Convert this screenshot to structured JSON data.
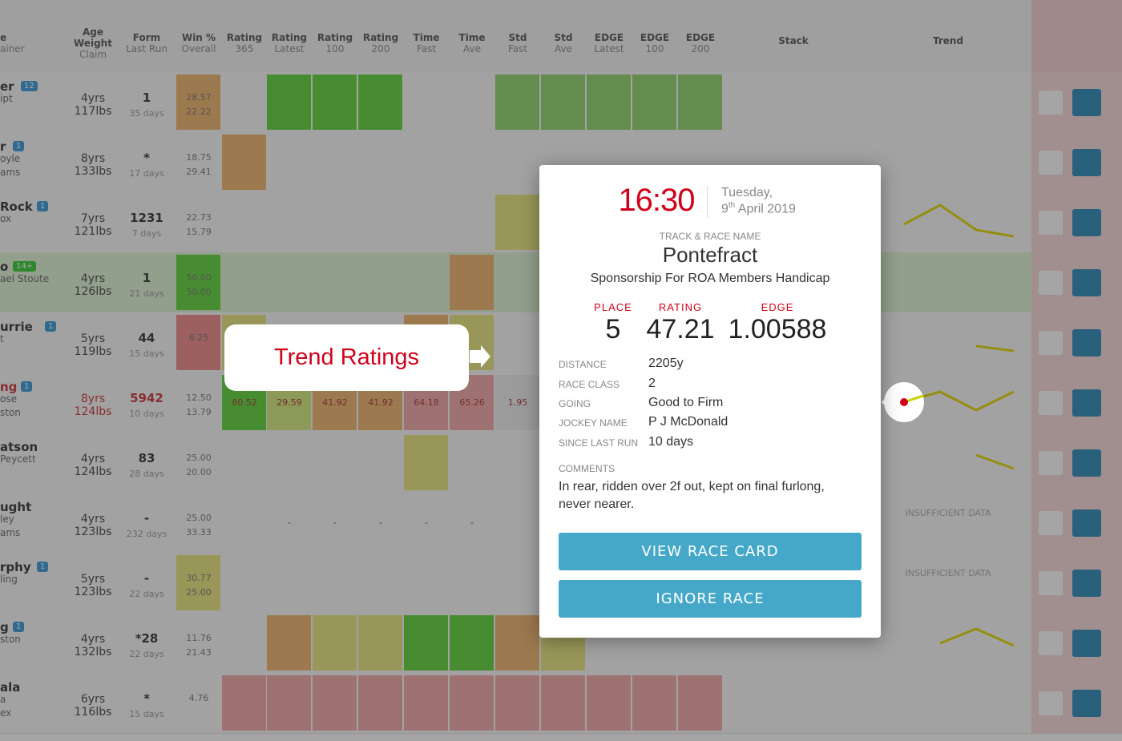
{
  "header": {
    "columns": [
      [
        "e",
        "ainer"
      ],
      [
        "Age",
        "Weight",
        "Claim"
      ],
      [
        "Form",
        "Last Run"
      ],
      [
        "Win %",
        "Overall"
      ],
      [
        "Rating",
        "365"
      ],
      [
        "Rating",
        "Latest"
      ],
      [
        "Rating",
        "100"
      ],
      [
        "Rating",
        "200"
      ],
      [
        "Time",
        "Fast"
      ],
      [
        "Time",
        "Ave"
      ],
      [
        "Std",
        "Fast"
      ],
      [
        "Std",
        "Ave"
      ],
      [
        "EDGE",
        "Latest"
      ],
      [
        "EDGE",
        "100"
      ],
      [
        "EDGE",
        "200"
      ],
      [
        "Stack"
      ],
      [
        "Trend"
      ]
    ]
  },
  "rows": [
    {
      "name": [
        "er",
        "ipt"
      ],
      "badge": "12",
      "age": "4yrs",
      "weight": "117lbs",
      "form": "1",
      "days": "35 days",
      "win": [
        "28.57",
        "22.22"
      ]
    },
    {
      "name": [
        "r",
        "oyle",
        "ams"
      ],
      "badge": "1",
      "age": "8yrs",
      "weight": "133lbs",
      "form": "*",
      "days": "17 days",
      "win": [
        "18.75",
        "29.41"
      ]
    },
    {
      "name": [
        "Rock",
        "ox"
      ],
      "badge": "1",
      "age": "7yrs",
      "weight": "121lbs",
      "form": "1231",
      "days": "7 days",
      "win": [
        "22.73",
        "15.79"
      ]
    },
    {
      "name": [
        "o",
        "ael Stoute"
      ],
      "badge": "14+",
      "age": "4yrs",
      "weight": "126lbs",
      "form": "1",
      "days": "21 days",
      "win": [
        "50.00",
        "50.00"
      ]
    },
    {
      "name": [
        "urrie",
        "t"
      ],
      "badge": "1",
      "age": "5yrs",
      "weight": "119lbs",
      "form": "44",
      "days": "15 days",
      "win": [
        "6.25"
      ]
    },
    {
      "name": [
        "ng",
        "ose",
        "ston"
      ],
      "badge": "1",
      "age": "8yrs",
      "weight": "124lbs",
      "form": "5942",
      "days": "10 days",
      "win": [
        "12.50",
        "13.79"
      ],
      "ratings": [
        "80.52",
        "29.59",
        "41.92",
        "41.92",
        "64.18",
        "65.26",
        "1.95",
        null,
        null,
        null,
        null
      ]
    },
    {
      "name": [
        "atson",
        "Peycett"
      ],
      "age": "4yrs",
      "weight": "124lbs",
      "form": "83",
      "days": "28 days",
      "win": [
        "25.00",
        "20.00"
      ]
    },
    {
      "name": [
        "ught",
        "ley",
        "ams"
      ],
      "age": "4yrs",
      "weight": "123lbs",
      "form": "-",
      "days": "232 days",
      "win": [
        "25.00",
        "33.33"
      ],
      "ratings": [
        null,
        "-",
        "-",
        "-",
        "-",
        "-",
        null,
        null,
        null,
        null,
        null
      ],
      "trend": "INSUFFICIENT DATA"
    },
    {
      "name": [
        "rphy",
        "ling"
      ],
      "badge": "1",
      "age": "5yrs",
      "weight": "123lbs",
      "form": "-",
      "days": "22 days",
      "win": [
        "30.77",
        "25.00"
      ],
      "trend": "INSUFFICIENT DATA"
    },
    {
      "name": [
        "g",
        "ston"
      ],
      "badge": "1",
      "age": "4yrs",
      "weight": "132lbs",
      "form": "*28",
      "days": "22 days",
      "win": [
        "11.76",
        "21.43"
      ]
    },
    {
      "name": [
        "ala",
        "a",
        "ex"
      ],
      "age": "6yrs",
      "weight": "116lbs",
      "form": "*",
      "days": "15 days",
      "win": [
        "4.76"
      ]
    }
  ],
  "callout": "Trend Ratings",
  "popup": {
    "time": "16:30",
    "day": "Tuesday,",
    "date_day": "9",
    "date_suffix": "th",
    "date_rest": "April 2019",
    "track_label": "TRACK & RACE NAME",
    "track": "Pontefract",
    "race": "Sponsorship For ROA Members Handicap",
    "stats": [
      {
        "label": "PLACE",
        "value": "5"
      },
      {
        "label": "RATING",
        "value": "47.21"
      },
      {
        "label": "EDGE",
        "value": "1.00588"
      }
    ],
    "details": [
      {
        "label": "DISTANCE",
        "value": "2205y"
      },
      {
        "label": "RACE CLASS",
        "value": "2"
      },
      {
        "label": "GOING",
        "value": "Good to Firm"
      },
      {
        "label": "JOCKEY NAME",
        "value": "P J McDonald"
      },
      {
        "label": "SINCE LAST RUN",
        "value": "10 days"
      }
    ],
    "comments_label": "COMMENTS",
    "comments": "In rear, ridden over 2f out, kept on final furlong, never nearer.",
    "buttons": [
      "VIEW RACE CARD",
      "IGNORE RACE"
    ]
  }
}
